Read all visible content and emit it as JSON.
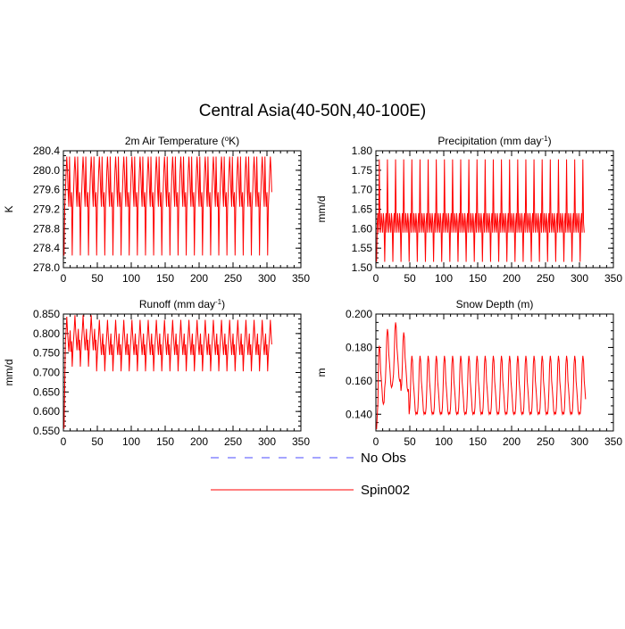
{
  "figure": {
    "title": "Central Asia(40-50N,40-100E)"
  },
  "colors": {
    "spin": "#ff0000",
    "noobs": "#4b4bff",
    "axis": "#000000"
  },
  "legend": {
    "entries": [
      {
        "name": "No Obs",
        "style": "dashed",
        "color": "#4b4bff"
      },
      {
        "name": "Spin002",
        "style": "solid",
        "color": "#ff0000"
      }
    ]
  },
  "chart_data": [
    {
      "type": "line",
      "title_parts": [
        "2m Air Temperature (",
        "o",
        "K)"
      ],
      "ylabel": "K",
      "xlim": [
        0,
        350
      ],
      "ylim": [
        278.0,
        280.4
      ],
      "xticks": [
        0,
        50,
        100,
        150,
        200,
        250,
        300,
        350
      ],
      "yticks": [
        278.0,
        278.4,
        278.8,
        279.2,
        279.6,
        280.0,
        280.4
      ],
      "ytick_labels": [
        "278.0",
        "278.4",
        "278.8",
        "279.2",
        "279.6",
        "280.0",
        "280.4"
      ],
      "series": [
        {
          "x_start": 1,
          "x_end": 307,
          "cycle_low": 278.25,
          "cycle_high": 280.28,
          "mid_low": 279.25,
          "mid_high": 279.98,
          "band": 279.55
        }
      ]
    },
    {
      "type": "line",
      "title_parts": [
        "Precipitation (mm day",
        "-1",
        ")"
      ],
      "ylabel": "mm/d",
      "xlim": [
        0,
        350
      ],
      "ylim": [
        1.5,
        1.8
      ],
      "xticks": [
        0,
        50,
        100,
        150,
        200,
        250,
        300,
        350
      ],
      "yticks": [
        1.5,
        1.55,
        1.6,
        1.65,
        1.7,
        1.75,
        1.8
      ],
      "ytick_labels": [
        "1.50",
        "1.55",
        "1.60",
        "1.65",
        "1.70",
        "1.75",
        "1.80"
      ],
      "series": [
        {
          "x_start": 1,
          "x_end": 307,
          "cycle_low": 1.515,
          "cycle_high": 1.778,
          "mid_low": 1.59,
          "mid_high": 1.64,
          "band": 1.615
        }
      ]
    },
    {
      "type": "line",
      "title_parts": [
        "Runoff (mm day",
        "-1",
        ")"
      ],
      "ylabel": "mm/d",
      "xlim": [
        0,
        350
      ],
      "ylim": [
        0.55,
        0.85
      ],
      "xticks": [
        0,
        50,
        100,
        150,
        200,
        250,
        300,
        350
      ],
      "yticks": [
        0.55,
        0.6,
        0.65,
        0.7,
        0.75,
        0.8,
        0.85
      ],
      "ytick_labels": [
        "0.550",
        "0.600",
        "0.650",
        "0.700",
        "0.750",
        "0.800",
        "0.850"
      ],
      "series": [
        {
          "x_start": 1,
          "x_end": 307,
          "spinup_start": 0.556,
          "cycle_low": 0.703,
          "cycle_high": 0.835,
          "mid_low": 0.745,
          "mid_high": 0.8,
          "band": 0.772
        }
      ]
    },
    {
      "type": "line",
      "title_parts": [
        "Snow Depth (m)"
      ],
      "ylabel": "m",
      "xlim": [
        0,
        350
      ],
      "ylim": [
        0.13,
        0.2
      ],
      "xticks": [
        0,
        50,
        100,
        150,
        200,
        250,
        300,
        350
      ],
      "yticks": [
        0.14,
        0.16,
        0.18,
        0.2
      ],
      "ytick_labels": [
        "0.140",
        "0.160",
        "0.180",
        "0.200"
      ],
      "series": [
        {
          "x_start": 1,
          "x_end": 309,
          "spinup_start": 0.131,
          "spinup_peak": 0.194,
          "cycle_low": 0.14,
          "cycle_high": 0.175,
          "band": 0.155
        }
      ]
    }
  ]
}
